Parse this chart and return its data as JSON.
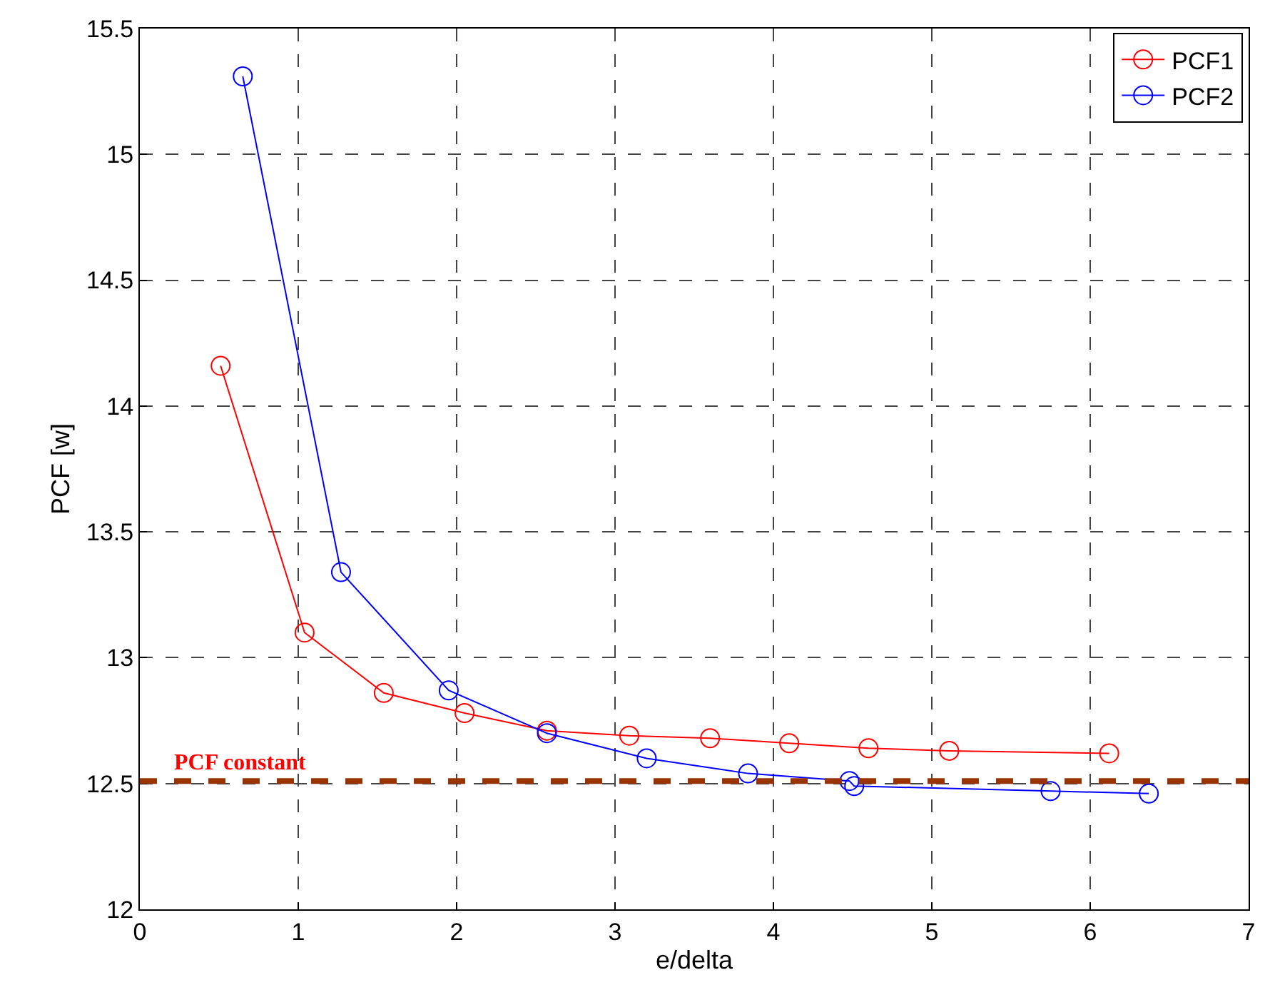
{
  "chart_data": {
    "type": "line",
    "xlabel": "e/delta",
    "ylabel": "PCF [w]",
    "xlim": [
      0,
      7
    ],
    "xticks": [
      0,
      1,
      2,
      3,
      4,
      5,
      6,
      7
    ],
    "ylim": [
      12,
      15.5
    ],
    "yticks": [
      12,
      {
        "value": 12.5,
        "label": "12.5"
      },
      13,
      13.5,
      14,
      14.5,
      15,
      15.5
    ],
    "grid": true,
    "legend": "top right",
    "marker": "circle",
    "line_style": "solid",
    "series": [
      {
        "name": "PCF1",
        "color": "#ff0000",
        "x": [
          0.51,
          1.04,
          1.54,
          2.05,
          2.57,
          3.09,
          3.6,
          4.1,
          4.6,
          5.11,
          6.12
        ],
        "values": [
          14.16,
          13.1,
          12.86,
          12.78,
          12.71,
          12.69,
          12.68,
          12.66,
          12.64,
          12.63,
          12.62
        ]
      },
      {
        "name": "PCF2",
        "color": "#0000ff",
        "x": [
          0.65,
          1.27,
          1.95,
          2.57,
          3.2,
          3.84,
          4.48,
          4.51,
          5.75,
          6.37
        ],
        "values": [
          15.31,
          13.34,
          12.87,
          12.7,
          12.6,
          12.54,
          12.51,
          12.49,
          12.47,
          12.46
        ]
      }
    ],
    "ref_lines": [
      {
        "axis": "y",
        "value": 12.51,
        "label": "PCF constant",
        "color": "#993300",
        "line_style": "dashed"
      }
    ]
  }
}
